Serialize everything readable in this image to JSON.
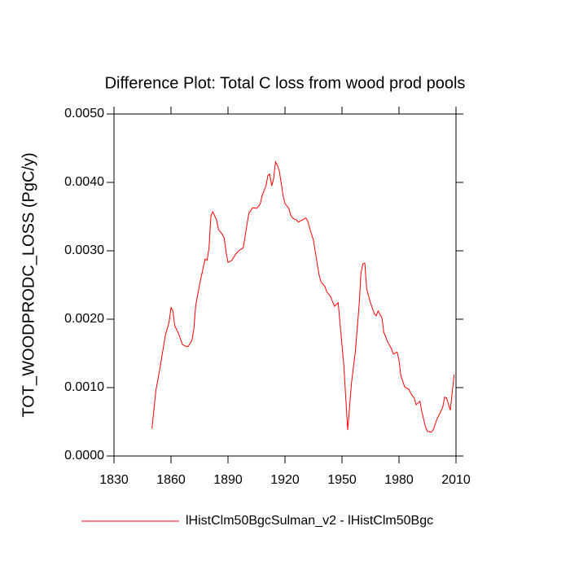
{
  "chart_data": {
    "type": "line",
    "title": "Difference Plot: Total C loss from wood prod pools",
    "y_label": "TOT_WOODPRODC_LOSS  (PgC/y)",
    "x": [
      1850,
      1852,
      1854,
      1857,
      1859,
      1860,
      1861,
      1862,
      1864,
      1866,
      1868,
      1869,
      1871,
      1872,
      1873,
      1875,
      1877,
      1878,
      1879,
      1880,
      1881,
      1882,
      1883,
      1884,
      1885,
      1887,
      1888,
      1889,
      1890,
      1892,
      1894,
      1896,
      1898,
      1899,
      1900,
      1901,
      1903,
      1905,
      1906,
      1907,
      1908,
      1910,
      1911,
      1912,
      1913,
      1914,
      1915,
      1916,
      1917,
      1918,
      1919,
      1920,
      1922,
      1923,
      1924,
      1926,
      1927,
      1929,
      1931,
      1932,
      1933,
      1935,
      1936,
      1937,
      1938,
      1939,
      1941,
      1942,
      1944,
      1946,
      1948,
      1951,
      1953,
      1955,
      1957,
      1959,
      1960,
      1961,
      1962,
      1963,
      1965,
      1967,
      1968,
      1969,
      1971,
      1972,
      1974,
      1976,
      1977,
      1979,
      1980,
      1981,
      1983,
      1984,
      1985,
      1987,
      1988,
      1989,
      1991,
      1992,
      1994,
      1995,
      1997,
      1998,
      2000,
      2003,
      2004,
      2005,
      2007,
      2009
    ],
    "series": [
      {
        "name": "lHistClm50BgcSulman_v2 - lHistClm50Bgc",
        "color": "#ff0000",
        "values": [
          0.0004,
          0.00095,
          0.00125,
          0.00176,
          0.00196,
          0.00217,
          0.00212,
          0.0019,
          0.00179,
          0.00163,
          0.0016,
          0.0016,
          0.00169,
          0.00185,
          0.0022,
          0.0025,
          0.00276,
          0.00288,
          0.00286,
          0.00304,
          0.00351,
          0.00357,
          0.00351,
          0.00345,
          0.00331,
          0.00324,
          0.00319,
          0.00298,
          0.00283,
          0.00286,
          0.00295,
          0.00301,
          0.00304,
          0.00321,
          0.00339,
          0.00355,
          0.00363,
          0.00362,
          0.00365,
          0.00369,
          0.00381,
          0.00395,
          0.0041,
          0.00412,
          0.00395,
          0.00405,
          0.0043,
          0.00425,
          0.00417,
          0.00399,
          0.00381,
          0.00369,
          0.00362,
          0.00352,
          0.00348,
          0.00345,
          0.00342,
          0.00345,
          0.00348,
          0.00343,
          0.00333,
          0.00315,
          0.00298,
          0.0028,
          0.00264,
          0.00254,
          0.00248,
          0.0024,
          0.00233,
          0.00219,
          0.00224,
          0.00131,
          0.00038,
          0.00107,
          0.00152,
          0.0022,
          0.00268,
          0.00281,
          0.00282,
          0.00244,
          0.00224,
          0.00208,
          0.00205,
          0.00212,
          0.00202,
          0.00181,
          0.00167,
          0.00157,
          0.00149,
          0.00152,
          0.0014,
          0.00117,
          0.00101,
          0.00099,
          0.00098,
          0.00088,
          0.00085,
          0.00075,
          0.0008,
          0.00065,
          0.00042,
          0.00036,
          0.00035,
          0.00038,
          0.00054,
          0.00071,
          0.00086,
          0.00085,
          0.00067,
          0.00119
        ]
      }
    ],
    "xlim": [
      1830,
      2010
    ],
    "xticks": [
      1830,
      1860,
      1890,
      1920,
      1950,
      1980,
      2010
    ],
    "ylim": [
      0,
      0.005
    ],
    "yticks": [
      {
        "value": 0,
        "label": "0.0000"
      },
      {
        "value": 0.001,
        "label": "0.0010"
      },
      {
        "value": 0.002,
        "label": "0.0020"
      },
      {
        "value": 0.003,
        "label": "0.0030"
      },
      {
        "value": 0.004,
        "label": "0.0040"
      },
      {
        "value": 0.005,
        "label": "0.0050"
      }
    ],
    "grid": false
  }
}
